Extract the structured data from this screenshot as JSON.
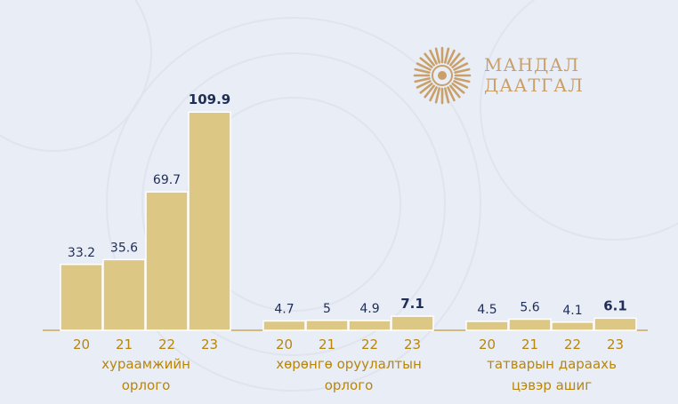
{
  "logo": {
    "line1": "МАНДАЛ",
    "line2": "ДААТГАЛ"
  },
  "colors": {
    "bar": "#dcc784",
    "bar_stroke": "#ffffff",
    "value_text": "#1f2e57",
    "axis_text": "#b8860b",
    "axis_line": "#b8860b",
    "logo": "#c9a06a"
  },
  "chart_data": {
    "type": "bar",
    "grouped": true,
    "groups": [
      {
        "label_lines": [
          "хураамжийн",
          "орлого"
        ],
        "categories": [
          "20",
          "21",
          "22",
          "23"
        ],
        "values": [
          33.2,
          35.6,
          69.7,
          109.9
        ]
      },
      {
        "label_lines": [
          "хөрөнгө оруулалтын",
          "орлого"
        ],
        "categories": [
          "20",
          "21",
          "22",
          "23"
        ],
        "values": [
          4.7,
          5,
          4.9,
          7.1
        ]
      },
      {
        "label_lines": [
          "татварын дараахь",
          "цэвэр ашиг"
        ],
        "categories": [
          "20",
          "21",
          "22",
          "23"
        ],
        "values": [
          4.5,
          5.6,
          4.1,
          6.1
        ]
      }
    ],
    "highlight_last": true,
    "ylim": [
      0,
      110
    ],
    "grid": false,
    "legend": "none"
  }
}
